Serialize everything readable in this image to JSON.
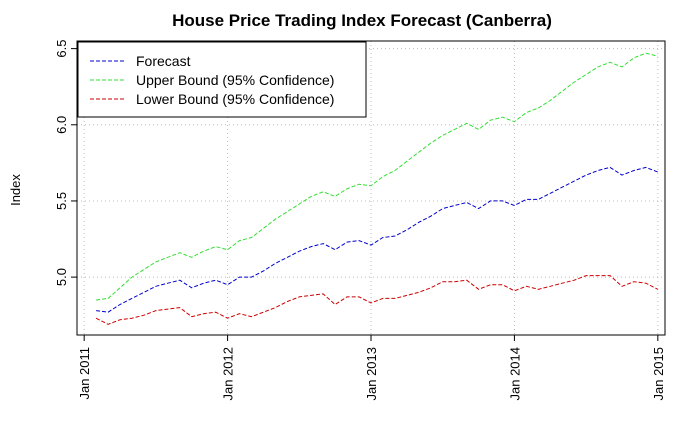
{
  "chart_data": {
    "type": "line",
    "title": "House Price Trading Index Forecast (Canberra)",
    "xlabel": "",
    "ylabel": "Index",
    "xlim": [
      2010.95,
      2015.05
    ],
    "ylim": [
      4.62,
      6.55
    ],
    "x_ticks": [
      {
        "value": 2011,
        "label": "Jan 2011"
      },
      {
        "value": 2012,
        "label": "Jan 2012"
      },
      {
        "value": 2013,
        "label": "Jan 2013"
      },
      {
        "value": 2014,
        "label": "Jan 2014"
      },
      {
        "value": 2015,
        "label": "Jan 2015"
      }
    ],
    "y_ticks": [
      {
        "value": 5.0,
        "label": "5.0"
      },
      {
        "value": 5.5,
        "label": "5.5"
      },
      {
        "value": 6.0,
        "label": "6.0"
      },
      {
        "value": 6.5,
        "label": "6.5"
      }
    ],
    "grid": true,
    "legend_position": "top-left",
    "x": [
      2011.083,
      2011.167,
      2011.25,
      2011.333,
      2011.417,
      2011.5,
      2011.583,
      2011.667,
      2011.75,
      2011.833,
      2011.917,
      2012.0,
      2012.083,
      2012.167,
      2012.25,
      2012.333,
      2012.417,
      2012.5,
      2012.583,
      2012.667,
      2012.75,
      2012.833,
      2012.917,
      2013.0,
      2013.083,
      2013.167,
      2013.25,
      2013.333,
      2013.417,
      2013.5,
      2013.583,
      2013.667,
      2013.75,
      2013.833,
      2013.917,
      2014.0,
      2014.083,
      2014.167,
      2014.25,
      2014.333,
      2014.417,
      2014.5,
      2014.583,
      2014.667,
      2014.75,
      2014.833,
      2014.917,
      2015.0
    ],
    "series": [
      {
        "name": "Forecast",
        "color": "#0000cc",
        "values": [
          4.78,
          4.77,
          4.82,
          4.86,
          4.9,
          4.94,
          4.96,
          4.98,
          4.93,
          4.96,
          4.98,
          4.95,
          5.0,
          5.0,
          5.04,
          5.09,
          5.13,
          5.17,
          5.2,
          5.22,
          5.18,
          5.23,
          5.24,
          5.21,
          5.26,
          5.27,
          5.31,
          5.36,
          5.4,
          5.45,
          5.47,
          5.49,
          5.45,
          5.5,
          5.5,
          5.47,
          5.51,
          5.51,
          5.55,
          5.59,
          5.63,
          5.67,
          5.7,
          5.72,
          5.67,
          5.7,
          5.72,
          5.69
        ]
      },
      {
        "name": "Upper Bound (95% Confidence)",
        "color": "#33dd33",
        "values": [
          4.85,
          4.86,
          4.93,
          5.0,
          5.05,
          5.1,
          5.13,
          5.16,
          5.13,
          5.17,
          5.2,
          5.18,
          5.24,
          5.26,
          5.32,
          5.38,
          5.43,
          5.48,
          5.53,
          5.56,
          5.53,
          5.58,
          5.61,
          5.6,
          5.66,
          5.7,
          5.76,
          5.82,
          5.88,
          5.93,
          5.97,
          6.01,
          5.97,
          6.03,
          6.05,
          6.02,
          6.08,
          6.11,
          6.16,
          6.22,
          6.28,
          6.33,
          6.38,
          6.41,
          6.38,
          6.44,
          6.47,
          6.45
        ]
      },
      {
        "name": "Lower Bound (95% Confidence)",
        "color": "#cc0000",
        "values": [
          4.73,
          4.69,
          4.72,
          4.73,
          4.75,
          4.78,
          4.79,
          4.8,
          4.74,
          4.76,
          4.77,
          4.73,
          4.76,
          4.74,
          4.77,
          4.8,
          4.84,
          4.87,
          4.88,
          4.89,
          4.82,
          4.87,
          4.87,
          4.83,
          4.86,
          4.86,
          4.88,
          4.9,
          4.93,
          4.97,
          4.97,
          4.98,
          4.92,
          4.95,
          4.95,
          4.91,
          4.94,
          4.92,
          4.94,
          4.96,
          4.98,
          5.01,
          5.01,
          5.01,
          4.94,
          4.97,
          4.96,
          4.92
        ]
      }
    ]
  }
}
